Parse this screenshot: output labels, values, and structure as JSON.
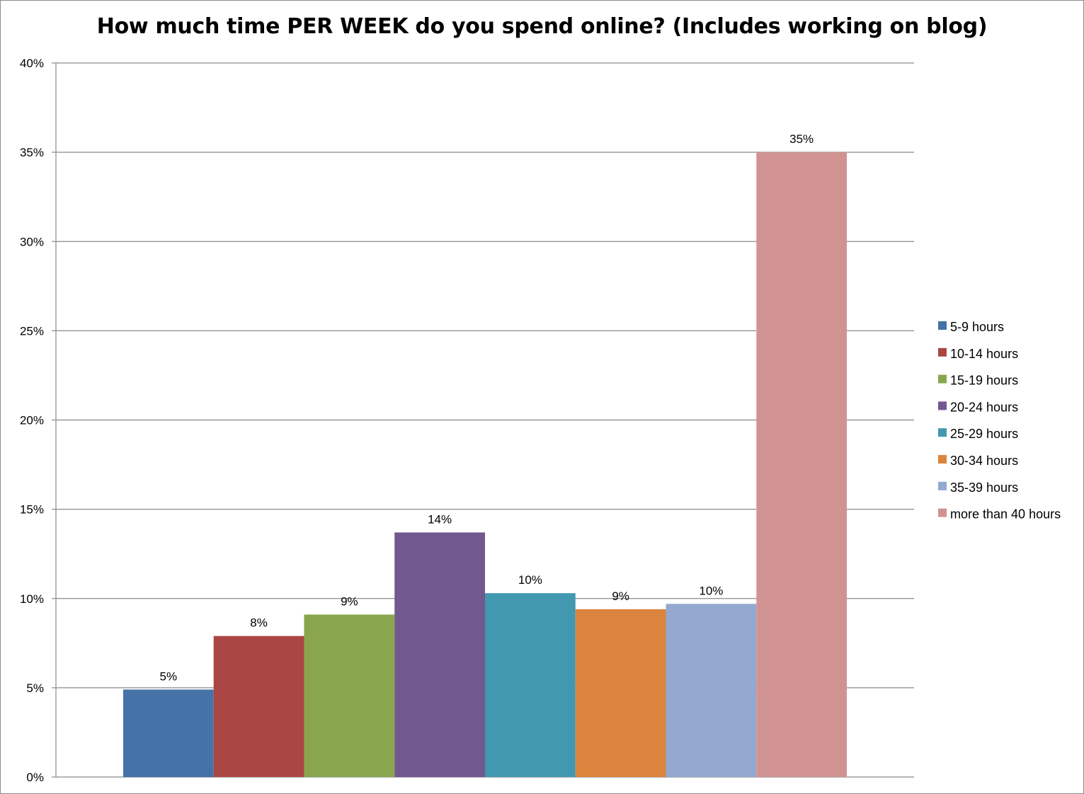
{
  "chart_data": {
    "type": "bar",
    "title": "How much time PER WEEK do you spend online? (Includes working on blog)",
    "xlabel": "",
    "ylabel": "",
    "ylim": [
      0,
      40
    ],
    "yticks": [
      "0%",
      "5%",
      "10%",
      "15%",
      "20%",
      "25%",
      "30%",
      "35%",
      "40%"
    ],
    "ytick_values": [
      0,
      5,
      10,
      15,
      20,
      25,
      30,
      35,
      40
    ],
    "grid": true,
    "legend_position": "right",
    "series": [
      {
        "name": "5-9 hours",
        "value": 4.9,
        "label": "5%",
        "color": "#4572a7"
      },
      {
        "name": "10-14 hours",
        "value": 7.9,
        "label": "8%",
        "color": "#aa4643"
      },
      {
        "name": "15-19 hours",
        "value": 9.1,
        "label": "9%",
        "color": "#89a54e"
      },
      {
        "name": "20-24 hours",
        "value": 13.7,
        "label": "14%",
        "color": "#71588f"
      },
      {
        "name": "25-29 hours",
        "value": 10.3,
        "label": "10%",
        "color": "#4198af"
      },
      {
        "name": "30-34 hours",
        "value": 9.4,
        "label": "9%",
        "color": "#db843d"
      },
      {
        "name": "35-39 hours",
        "value": 9.7,
        "label": "10%",
        "color": "#93a9cf"
      },
      {
        "name": "more than 40 hours",
        "value": 35.0,
        "label": "35%",
        "color": "#d19392"
      }
    ]
  }
}
